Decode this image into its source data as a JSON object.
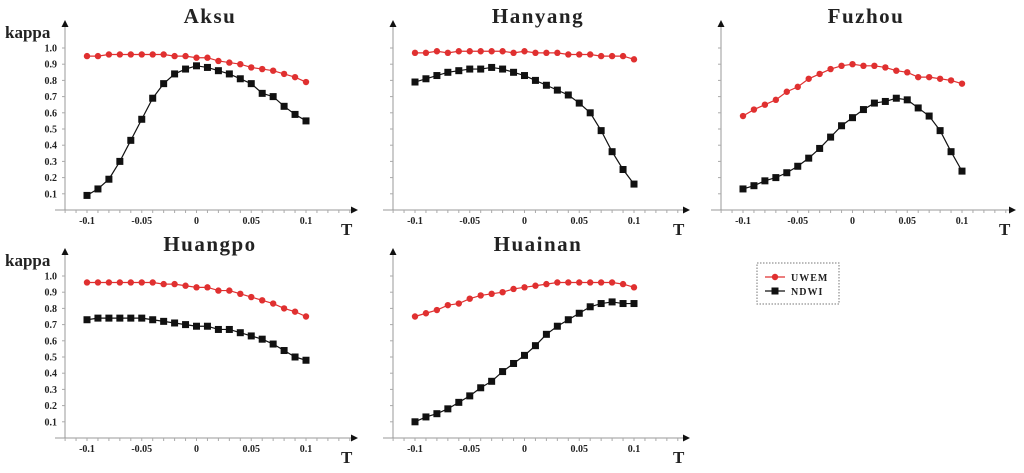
{
  "chart_data": [
    {
      "type": "line",
      "title": "Aksu",
      "xlabel": "T",
      "ylabel": "kappa",
      "show_ytick_labels": true,
      "x": [
        -0.1,
        -0.09,
        -0.08,
        -0.07,
        -0.06,
        -0.05,
        -0.04,
        -0.03,
        -0.02,
        -0.01,
        0,
        0.01,
        0.02,
        0.03,
        0.04,
        0.05,
        0.06,
        0.07,
        0.08,
        0.09,
        0.1
      ],
      "xticks": [
        "-0.1",
        "-0.05",
        "0",
        "0.05",
        "0.1"
      ],
      "yticks": [
        "0.1",
        "0.2",
        "0.3",
        "0.4",
        "0.5",
        "0.6",
        "0.7",
        "0.8",
        "0.9",
        "1.0"
      ],
      "xlim": [
        -0.12,
        0.14
      ],
      "ylim": [
        0,
        1.1
      ],
      "series": [
        {
          "name": "UWEM",
          "values": [
            0.95,
            0.95,
            0.96,
            0.96,
            0.96,
            0.96,
            0.96,
            0.96,
            0.95,
            0.95,
            0.94,
            0.94,
            0.92,
            0.91,
            0.9,
            0.88,
            0.87,
            0.86,
            0.84,
            0.82,
            0.79
          ]
        },
        {
          "name": "NDWI",
          "values": [
            0.09,
            0.13,
            0.19,
            0.3,
            0.43,
            0.56,
            0.69,
            0.78,
            0.84,
            0.87,
            0.89,
            0.88,
            0.86,
            0.84,
            0.81,
            0.78,
            0.72,
            0.7,
            0.64,
            0.59,
            0.55
          ]
        }
      ]
    },
    {
      "type": "line",
      "title": "Hanyang",
      "xlabel": "T",
      "ylabel": "",
      "show_ytick_labels": false,
      "x": [
        -0.1,
        -0.09,
        -0.08,
        -0.07,
        -0.06,
        -0.05,
        -0.04,
        -0.03,
        -0.02,
        -0.01,
        0,
        0.01,
        0.02,
        0.03,
        0.04,
        0.05,
        0.06,
        0.07,
        0.08,
        0.09,
        0.1
      ],
      "xticks": [
        "-0.1",
        "-0.05",
        "0",
        "0.05",
        "0.1"
      ],
      "xlim": [
        -0.12,
        0.14
      ],
      "ylim": [
        0,
        1.1
      ],
      "series": [
        {
          "name": "UWEM",
          "values": [
            0.97,
            0.97,
            0.98,
            0.97,
            0.98,
            0.98,
            0.98,
            0.98,
            0.98,
            0.97,
            0.98,
            0.97,
            0.97,
            0.97,
            0.96,
            0.96,
            0.96,
            0.95,
            0.95,
            0.95,
            0.93
          ]
        },
        {
          "name": "NDWI",
          "values": [
            0.79,
            0.81,
            0.83,
            0.85,
            0.86,
            0.87,
            0.87,
            0.88,
            0.87,
            0.85,
            0.83,
            0.8,
            0.77,
            0.74,
            0.71,
            0.66,
            0.6,
            0.49,
            0.36,
            0.25,
            0.16
          ]
        }
      ]
    },
    {
      "type": "line",
      "title": "Fuzhou",
      "xlabel": "T",
      "ylabel": "",
      "show_ytick_labels": false,
      "x": [
        -0.1,
        -0.09,
        -0.08,
        -0.07,
        -0.06,
        -0.05,
        -0.04,
        -0.03,
        -0.02,
        -0.01,
        0,
        0.01,
        0.02,
        0.03,
        0.04,
        0.05,
        0.06,
        0.07,
        0.08,
        0.09,
        0.1
      ],
      "xticks": [
        "-0.1",
        "-0.05",
        "0",
        "0.05",
        "0.1"
      ],
      "xlim": [
        -0.12,
        0.14
      ],
      "ylim": [
        0,
        1.1
      ],
      "series": [
        {
          "name": "UWEM",
          "values": [
            0.58,
            0.62,
            0.65,
            0.68,
            0.73,
            0.76,
            0.81,
            0.84,
            0.87,
            0.89,
            0.9,
            0.89,
            0.89,
            0.88,
            0.86,
            0.85,
            0.82,
            0.82,
            0.81,
            0.8,
            0.78
          ]
        },
        {
          "name": "NDWI",
          "values": [
            0.13,
            0.15,
            0.18,
            0.2,
            0.23,
            0.27,
            0.32,
            0.38,
            0.45,
            0.52,
            0.57,
            0.62,
            0.66,
            0.67,
            0.69,
            0.68,
            0.63,
            0.58,
            0.49,
            0.36,
            0.24
          ]
        }
      ]
    },
    {
      "type": "line",
      "title": "Huangpo",
      "xlabel": "T",
      "ylabel": "kappa",
      "show_ytick_labels": true,
      "x": [
        -0.1,
        -0.09,
        -0.08,
        -0.07,
        -0.06,
        -0.05,
        -0.04,
        -0.03,
        -0.02,
        -0.01,
        0,
        0.01,
        0.02,
        0.03,
        0.04,
        0.05,
        0.06,
        0.07,
        0.08,
        0.09,
        0.1
      ],
      "xticks": [
        "-0.1",
        "-0.05",
        "0",
        "0.05",
        "0.1"
      ],
      "yticks": [
        "0.1",
        "0.2",
        "0.3",
        "0.4",
        "0.5",
        "0.6",
        "0.7",
        "0.8",
        "0.9",
        "1.0"
      ],
      "xlim": [
        -0.12,
        0.14
      ],
      "ylim": [
        0,
        1.1
      ],
      "series": [
        {
          "name": "UWEM",
          "values": [
            0.96,
            0.96,
            0.96,
            0.96,
            0.96,
            0.96,
            0.96,
            0.95,
            0.95,
            0.94,
            0.93,
            0.93,
            0.91,
            0.91,
            0.89,
            0.87,
            0.85,
            0.83,
            0.8,
            0.78,
            0.75
          ]
        },
        {
          "name": "NDWI",
          "values": [
            0.73,
            0.74,
            0.74,
            0.74,
            0.74,
            0.74,
            0.73,
            0.72,
            0.71,
            0.7,
            0.69,
            0.69,
            0.67,
            0.67,
            0.65,
            0.63,
            0.61,
            0.58,
            0.54,
            0.5,
            0.48
          ]
        }
      ]
    },
    {
      "type": "line",
      "title": "Huainan",
      "xlabel": "T",
      "ylabel": "",
      "show_ytick_labels": false,
      "x": [
        -0.1,
        -0.09,
        -0.08,
        -0.07,
        -0.06,
        -0.05,
        -0.04,
        -0.03,
        -0.02,
        -0.01,
        0,
        0.01,
        0.02,
        0.03,
        0.04,
        0.05,
        0.06,
        0.07,
        0.08,
        0.09,
        0.1
      ],
      "xticks": [
        "-0.1",
        "-0.05",
        "0",
        "0.05",
        "0.1"
      ],
      "xlim": [
        -0.12,
        0.14
      ],
      "ylim": [
        0,
        1.1
      ],
      "series": [
        {
          "name": "UWEM",
          "values": [
            0.75,
            0.77,
            0.79,
            0.82,
            0.83,
            0.86,
            0.88,
            0.89,
            0.9,
            0.92,
            0.93,
            0.94,
            0.95,
            0.96,
            0.96,
            0.96,
            0.96,
            0.96,
            0.96,
            0.95,
            0.93
          ]
        },
        {
          "name": "NDWI",
          "values": [
            0.1,
            0.13,
            0.15,
            0.18,
            0.22,
            0.26,
            0.31,
            0.35,
            0.41,
            0.46,
            0.51,
            0.57,
            0.64,
            0.69,
            0.73,
            0.77,
            0.81,
            0.83,
            0.84,
            0.83,
            0.83
          ]
        }
      ]
    }
  ],
  "legend": {
    "placement": "right-middle",
    "items": [
      {
        "label": "UWEM",
        "color": "#e03030",
        "marker": "circle"
      },
      {
        "label": "NDWI",
        "color": "#111111",
        "marker": "square"
      }
    ]
  },
  "colors": {
    "UWEM": "#e03030",
    "NDWI": "#111111",
    "axis": "#888888"
  }
}
